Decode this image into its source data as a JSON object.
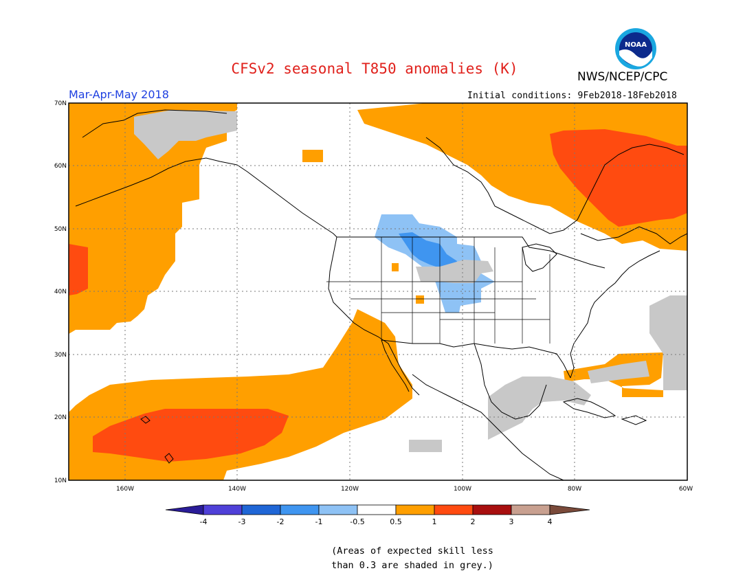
{
  "header": {
    "title": "CFSv2 seasonal T850 anomalies (K)",
    "agency": "NWS/NCEP/CPC",
    "logo_text": "NOAA",
    "season": "Mar-Apr-May 2018",
    "initial_conditions": "Initial conditions: 9Feb2018-18Feb2018"
  },
  "map": {
    "lat_labels": [
      "70N",
      "60N",
      "50N",
      "40N",
      "30N",
      "20N",
      "10N"
    ],
    "lon_labels": [
      "160W",
      "140W",
      "120W",
      "100W",
      "80W",
      "60W"
    ]
  },
  "colorbar": {
    "labels": [
      "-4",
      "-3",
      "-2",
      "-1",
      "-0.5",
      "0.5",
      "1",
      "2",
      "3",
      "4"
    ],
    "colors": [
      "#2a1c98",
      "#4f40d8",
      "#1f66d6",
      "#3f95f0",
      "#8ec2f5",
      "#ffffff",
      "#ff9f00",
      "#ff4b10",
      "#a80f0f",
      "#c8a090",
      "#7a4a3a"
    ]
  },
  "footnote": {
    "line1": "(Areas of expected skill less",
    "line2": "than 0.3 are shaded in grey.)"
  },
  "colors": {
    "anom_0_5_1": "#ff9f00",
    "anom_1_2": "#ff4b10",
    "anom_neg_0_5_1": "#8ec2f5",
    "anom_neg_1_2": "#3f95f0",
    "low_skill": "#c8c8c8"
  }
}
